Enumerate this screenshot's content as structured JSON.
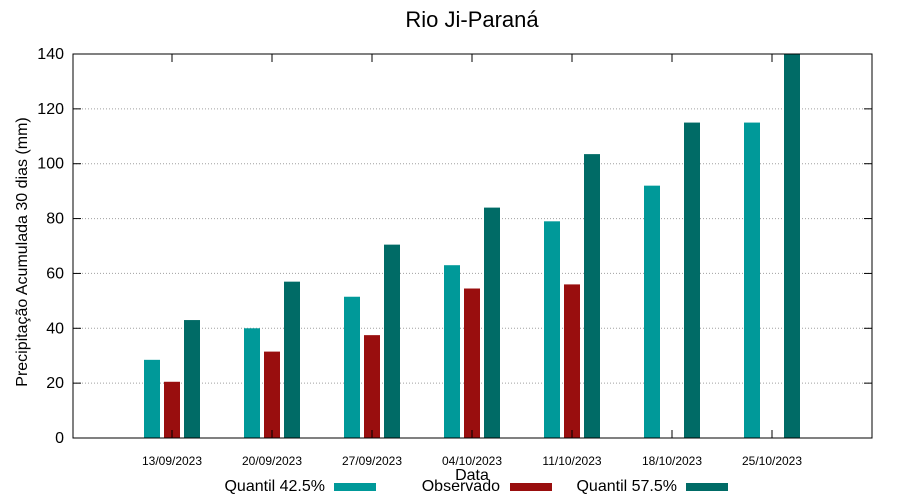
{
  "chart_data": {
    "type": "bar",
    "title": "Rio Ji-Paraná",
    "xlabel": "Data",
    "ylabel": "Precipitação Acumulada 30 dias (mm)",
    "ylim": [
      0,
      140
    ],
    "yticks": [
      0,
      20,
      40,
      60,
      80,
      100,
      120,
      140
    ],
    "grid": true,
    "legend_position": "bottom",
    "categories": [
      "13/09/2023",
      "20/09/2023",
      "27/09/2023",
      "04/10/2023",
      "11/10/2023",
      "18/10/2023",
      "25/10/2023"
    ],
    "series": [
      {
        "name": "Quantil 42.5%",
        "color": "#009999",
        "values": [
          28.5,
          40,
          51.5,
          63,
          79,
          92,
          115
        ]
      },
      {
        "name": "Observado",
        "color": "#990e0e",
        "values": [
          20.5,
          31.5,
          37.5,
          54.5,
          56,
          null,
          null
        ]
      },
      {
        "name": "Quantil 57.5%",
        "color": "#006b66",
        "values": [
          43,
          57,
          70.5,
          84,
          103.5,
          115,
          140
        ]
      }
    ]
  }
}
